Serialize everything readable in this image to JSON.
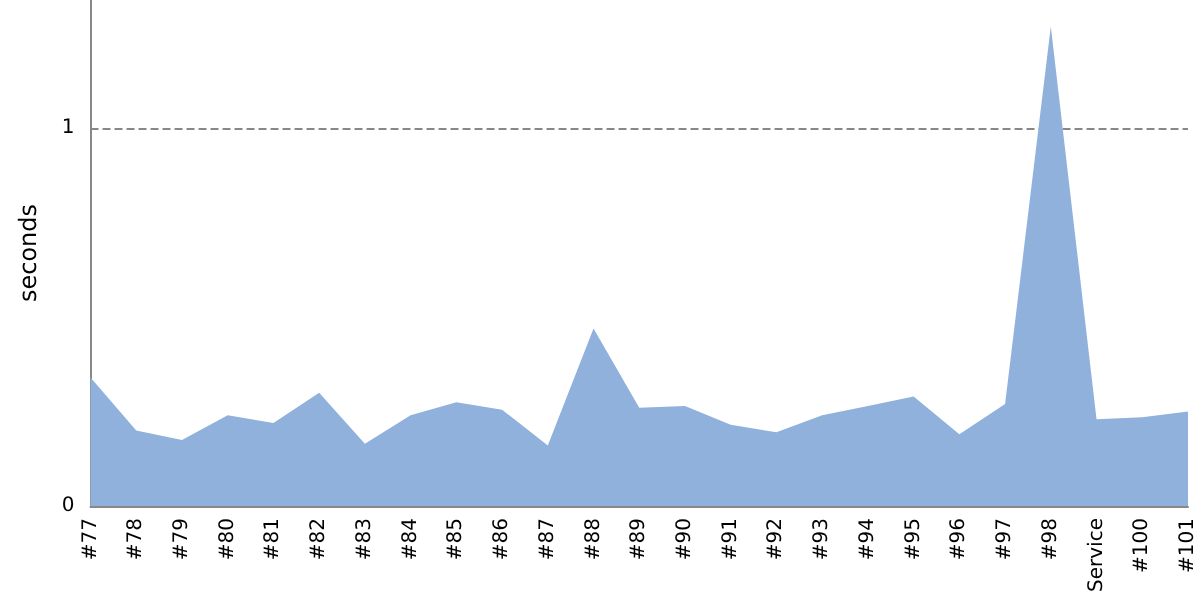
{
  "chart_data": {
    "type": "area",
    "ylabel": "seconds",
    "categories": [
      "#77",
      "#78",
      "#79",
      "#80",
      "#81",
      "#82",
      "#83",
      "#84",
      "#85",
      "#86",
      "#87",
      "#88",
      "#89",
      "#90",
      "#91",
      "#92",
      "#93",
      "#94",
      "#95",
      "#96",
      "#97",
      "#98",
      "Service",
      "#100",
      "#101"
    ],
    "series": [
      {
        "color": "#8fb1dc",
        "values": [
          0.34,
          0.2,
          0.175,
          0.24,
          0.22,
          0.3,
          0.165,
          0.24,
          0.275,
          0.255,
          0.16,
          0.47,
          0.26,
          0.265,
          0.215,
          0.195,
          0.24,
          0.265,
          0.29,
          0.19,
          0.27,
          1.27,
          0.23,
          0.235,
          0.25
        ]
      }
    ],
    "ylim": [
      0,
      1.34
    ],
    "yticks": [
      0,
      1
    ],
    "grid": "y",
    "marker": "none"
  }
}
